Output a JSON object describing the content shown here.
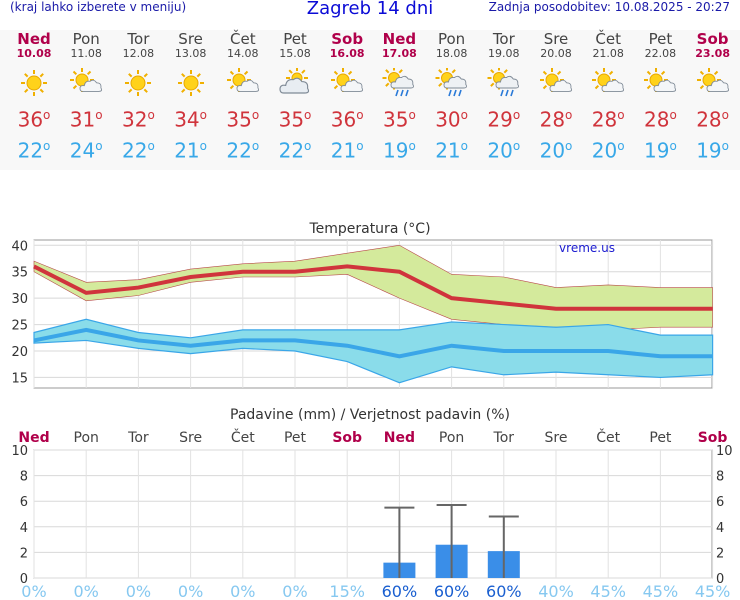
{
  "header": {
    "left_note": "(kraj lahko izberete v meniju)",
    "title": "Zagreb 14 dni",
    "updated": "Zadnja posodobitev: 10.08.2025 - 20:27"
  },
  "days": [
    {
      "name": "Ned",
      "date": "10.08",
      "weekend": true,
      "icon": "sun-icon",
      "max": "36",
      "min": "22"
    },
    {
      "name": "Pon",
      "date": "11.08",
      "weekend": false,
      "icon": "sun-cloud-icon",
      "max": "31",
      "min": "24"
    },
    {
      "name": "Tor",
      "date": "12.08",
      "weekend": false,
      "icon": "sun-icon",
      "max": "32",
      "min": "22"
    },
    {
      "name": "Sre",
      "date": "13.08",
      "weekend": false,
      "icon": "sun-icon",
      "max": "34",
      "min": "21"
    },
    {
      "name": "Čet",
      "date": "14.08",
      "weekend": false,
      "icon": "sun-cloud-icon",
      "max": "35",
      "min": "22"
    },
    {
      "name": "Pet",
      "date": "15.08",
      "weekend": false,
      "icon": "cloud-sun-icon",
      "max": "35",
      "min": "22"
    },
    {
      "name": "Sob",
      "date": "16.08",
      "weekend": true,
      "icon": "sun-cloud-icon",
      "max": "36",
      "min": "21"
    },
    {
      "name": "Ned",
      "date": "17.08",
      "weekend": true,
      "icon": "sun-rain-icon",
      "max": "35",
      "min": "19"
    },
    {
      "name": "Pon",
      "date": "18.08",
      "weekend": false,
      "icon": "sun-rain-icon",
      "max": "30",
      "min": "21"
    },
    {
      "name": "Tor",
      "date": "19.08",
      "weekend": false,
      "icon": "sun-rain-icon",
      "max": "29",
      "min": "20"
    },
    {
      "name": "Sre",
      "date": "20.08",
      "weekend": false,
      "icon": "sun-cloud-icon",
      "max": "28",
      "min": "20"
    },
    {
      "name": "Čet",
      "date": "21.08",
      "weekend": false,
      "icon": "sun-cloud-icon",
      "max": "28",
      "min": "20"
    },
    {
      "name": "Pet",
      "date": "22.08",
      "weekend": false,
      "icon": "sun-cloud-icon",
      "max": "28",
      "min": "19"
    },
    {
      "name": "Sob",
      "date": "23.08",
      "weekend": true,
      "icon": "sun-cloud-icon",
      "max": "28",
      "min": "19"
    }
  ],
  "degree_symbol": "o",
  "chart_data": [
    {
      "type": "line",
      "title": "Temperatura (°C)",
      "watermark": "vreme.us",
      "categories": [
        "Ned",
        "Pon",
        "Tor",
        "Sre",
        "Čet",
        "Pet",
        "Sob",
        "Ned",
        "Pon",
        "Tor",
        "Sre",
        "Čet",
        "Pet",
        "Sob"
      ],
      "ylim": [
        13,
        41
      ],
      "yticks": [
        15,
        20,
        25,
        30,
        35,
        40
      ],
      "grid": true,
      "colors": {
        "max_line": "#d0343c",
        "max_band": "#d4ea9c",
        "min_line": "#3aa6e8",
        "min_band": "#8adcea"
      },
      "series": [
        {
          "values": [
            36,
            31,
            32,
            34,
            35,
            35,
            36,
            35,
            30,
            29,
            28,
            28,
            28,
            28
          ]
        },
        {
          "values": [
            22,
            24,
            22,
            21,
            22,
            22,
            21,
            19,
            21,
            20,
            20,
            20,
            19,
            19
          ]
        }
      ],
      "max_band": {
        "upper": [
          37,
          33,
          33.5,
          35.5,
          36.5,
          37,
          38.5,
          40,
          34.5,
          34,
          32,
          32.5,
          32,
          32
        ],
        "lower": [
          35,
          29.5,
          30.5,
          33,
          34,
          34,
          34.5,
          30,
          26,
          25,
          24.5,
          24,
          24.5,
          24.5
        ]
      },
      "min_band": {
        "upper": [
          23.5,
          26,
          23.5,
          22.5,
          24,
          24,
          24,
          24,
          25.5,
          25,
          24.5,
          25,
          23,
          23
        ],
        "lower": [
          21.5,
          22,
          20.5,
          19.5,
          20.5,
          20,
          18,
          14,
          17,
          15.5,
          16,
          15.5,
          15,
          15.5
        ]
      }
    },
    {
      "type": "bar",
      "title": "Padavine (mm) / Verjetnost padavin (%)",
      "categories": [
        "Ned",
        "Pon",
        "Tor",
        "Sre",
        "Čet",
        "Pet",
        "Sob",
        "Ned",
        "Pon",
        "Tor",
        "Sre",
        "Čet",
        "Pet",
        "Sob"
      ],
      "ylim": [
        0,
        10
      ],
      "yticks": [
        0,
        2,
        4,
        6,
        8,
        10
      ],
      "grid": true,
      "colors": {
        "bar": "#3a8ee8",
        "error": "#666666",
        "prob_high": "#1a5fd0",
        "prob_low": "#86c8f0"
      },
      "values": [
        0,
        0,
        0,
        0,
        0,
        0,
        0,
        1.2,
        2.6,
        2.1,
        0,
        0,
        0,
        0
      ],
      "error_max": [
        null,
        null,
        null,
        null,
        null,
        null,
        null,
        5.5,
        5.7,
        4.8,
        null,
        null,
        null,
        null
      ],
      "probability": [
        "0%",
        "0%",
        "0%",
        "0%",
        "0%",
        "0%",
        "15%",
        "60%",
        "60%",
        "60%",
        "40%",
        "45%",
        "45%",
        "45%"
      ]
    }
  ]
}
